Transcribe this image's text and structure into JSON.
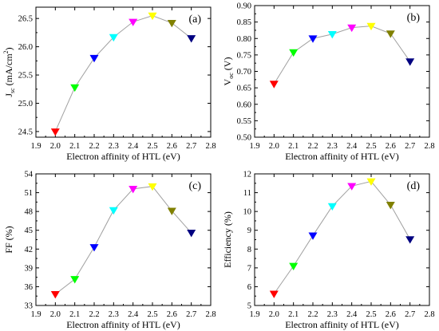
{
  "chart_data": [
    {
      "type": "line",
      "panel": "(a)",
      "ylabel": "J_sc (mA/cm^2)",
      "ylabel_main": "J",
      "ylabel_sub": "sc",
      "ylabel_rest": " (mA/cm",
      "ylabel_sup": "2",
      "ylabel_end": ")",
      "xlabel": "Electron affinity of HTL (eV)",
      "xlim": [
        1.9,
        2.8
      ],
      "ylim": [
        24.4,
        26.7
      ],
      "xticks": [
        "1.9",
        "2.0",
        "2.1",
        "2.2",
        "2.3",
        "2.4",
        "2.5",
        "2.6",
        "2.7",
        "2.8"
      ],
      "yticks": [
        "24.5",
        "25.0",
        "25.5",
        "26.0",
        "26.5"
      ],
      "x": [
        2.0,
        2.1,
        2.2,
        2.3,
        2.4,
        2.5,
        2.6,
        2.7
      ],
      "values": [
        24.5,
        25.28,
        25.8,
        26.17,
        26.44,
        26.55,
        26.42,
        26.15
      ]
    },
    {
      "type": "line",
      "panel": "(b)",
      "ylabel": "V_oc (V)",
      "ylabel_main": "V",
      "ylabel_sub": "oc",
      "ylabel_rest": " (V)",
      "ylabel_sup": "",
      "ylabel_end": "",
      "xlabel": "Electron affinity of HTL (eV)",
      "xlim": [
        1.9,
        2.8
      ],
      "ylim": [
        0.5,
        0.9
      ],
      "xticks": [
        "1.9",
        "2.0",
        "2.1",
        "2.2",
        "2.3",
        "2.4",
        "2.5",
        "2.6",
        "2.7",
        "2.8"
      ],
      "yticks": [
        "0.50",
        "0.55",
        "0.60",
        "0.65",
        "0.70",
        "0.75",
        "0.80",
        "0.85",
        "0.90"
      ],
      "x": [
        2.0,
        2.1,
        2.2,
        2.3,
        2.4,
        2.5,
        2.6,
        2.7
      ],
      "values": [
        0.662,
        0.758,
        0.8,
        0.813,
        0.833,
        0.838,
        0.815,
        0.73
      ]
    },
    {
      "type": "line",
      "panel": "(c)",
      "ylabel": "FF (%)",
      "ylabel_main": "FF (%)",
      "ylabel_sub": "",
      "ylabel_rest": "",
      "ylabel_sup": "",
      "ylabel_end": "",
      "xlabel": "Electron affinity of HTL (eV)",
      "xlim": [
        1.9,
        2.8
      ],
      "ylim": [
        33,
        54
      ],
      "xticks": [
        "1.9",
        "2.0",
        "2.1",
        "2.2",
        "2.3",
        "2.4",
        "2.5",
        "2.6",
        "2.7",
        "2.8"
      ],
      "yticks": [
        "33",
        "36",
        "39",
        "42",
        "45",
        "48",
        "51",
        "54"
      ],
      "x": [
        2.0,
        2.1,
        2.2,
        2.3,
        2.4,
        2.5,
        2.6,
        2.7
      ],
      "values": [
        34.8,
        37.2,
        42.3,
        48.2,
        51.6,
        52.0,
        48.1,
        44.6
      ]
    },
    {
      "type": "line",
      "panel": "(d)",
      "ylabel": "Efficiency (%)",
      "ylabel_main": "Efficiency (%)",
      "ylabel_sub": "",
      "ylabel_rest": "",
      "ylabel_sup": "",
      "ylabel_end": "",
      "xlabel": "Electron affinity of HTL (eV)",
      "xlim": [
        1.9,
        2.8
      ],
      "ylim": [
        5,
        12
      ],
      "xticks": [
        "1.9",
        "2.0",
        "2.1",
        "2.2",
        "2.3",
        "2.4",
        "2.5",
        "2.6",
        "2.7",
        "2.8"
      ],
      "yticks": [
        "5",
        "6",
        "7",
        "8",
        "9",
        "10",
        "11",
        "12"
      ],
      "x": [
        2.0,
        2.1,
        2.2,
        2.3,
        2.4,
        2.5,
        2.6,
        2.7
      ],
      "values": [
        5.62,
        7.1,
        8.72,
        10.28,
        11.35,
        11.6,
        10.35,
        8.52
      ]
    }
  ],
  "marker_colors": [
    "#ff0000",
    "#00ff00",
    "#0000ff",
    "#00ffff",
    "#ff00ff",
    "#ffff00",
    "#808000",
    "#000080"
  ],
  "line_color": "#a0a0a0",
  "marker_shape": "down-triangle"
}
